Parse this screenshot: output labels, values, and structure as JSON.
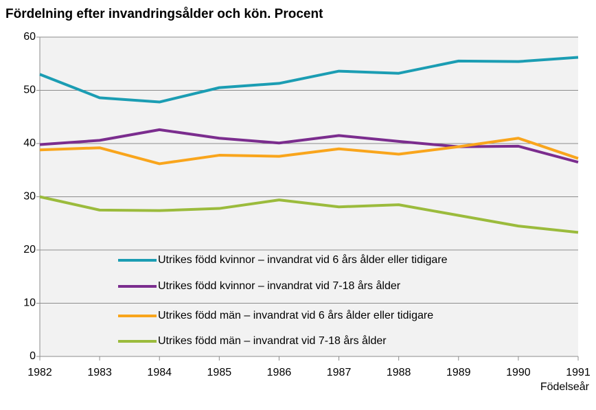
{
  "chart_data": {
    "type": "line",
    "title": "Fördelning efter invandringsålder och kön. Procent",
    "x_label": "Födelseår",
    "x": [
      1982,
      1983,
      1984,
      1985,
      1986,
      1987,
      1988,
      1989,
      1990,
      1991
    ],
    "xlim": [
      1982,
      1991
    ],
    "xticks": [
      1982,
      1983,
      1984,
      1985,
      1986,
      1987,
      1988,
      1989,
      1990,
      1991
    ],
    "ylim": [
      0,
      60
    ],
    "yticks": [
      0,
      10,
      20,
      30,
      40,
      50,
      60
    ],
    "grid": true,
    "legend": "inside lower center",
    "series": [
      {
        "name": "Utrikes född kvinnor – invandrat vid 6 års ålder eller tidigare",
        "color": "#1b9db3",
        "values": [
          53.0,
          48.6,
          47.8,
          50.5,
          51.3,
          53.6,
          53.2,
          55.5,
          55.4,
          56.2
        ]
      },
      {
        "name": "Utrikes född kvinnor – invandrat vid 7-18 års ålder",
        "color": "#7b2d8e",
        "values": [
          39.8,
          40.6,
          42.6,
          41.0,
          40.1,
          41.5,
          40.4,
          39.4,
          39.5,
          36.5
        ]
      },
      {
        "name": "Utrikes född män – invandrat vid 6 års ålder eller tidigare",
        "color": "#f9a51c",
        "values": [
          38.8,
          39.2,
          36.2,
          37.8,
          37.6,
          39.0,
          38.0,
          39.4,
          41.0,
          37.2
        ]
      },
      {
        "name": "Utrikes född män – invandrat vid 7-18 års ålder",
        "color": "#9bbb3c",
        "values": [
          30.0,
          27.5,
          27.4,
          27.8,
          29.4,
          28.1,
          28.5,
          26.5,
          24.5,
          23.3
        ]
      }
    ]
  }
}
